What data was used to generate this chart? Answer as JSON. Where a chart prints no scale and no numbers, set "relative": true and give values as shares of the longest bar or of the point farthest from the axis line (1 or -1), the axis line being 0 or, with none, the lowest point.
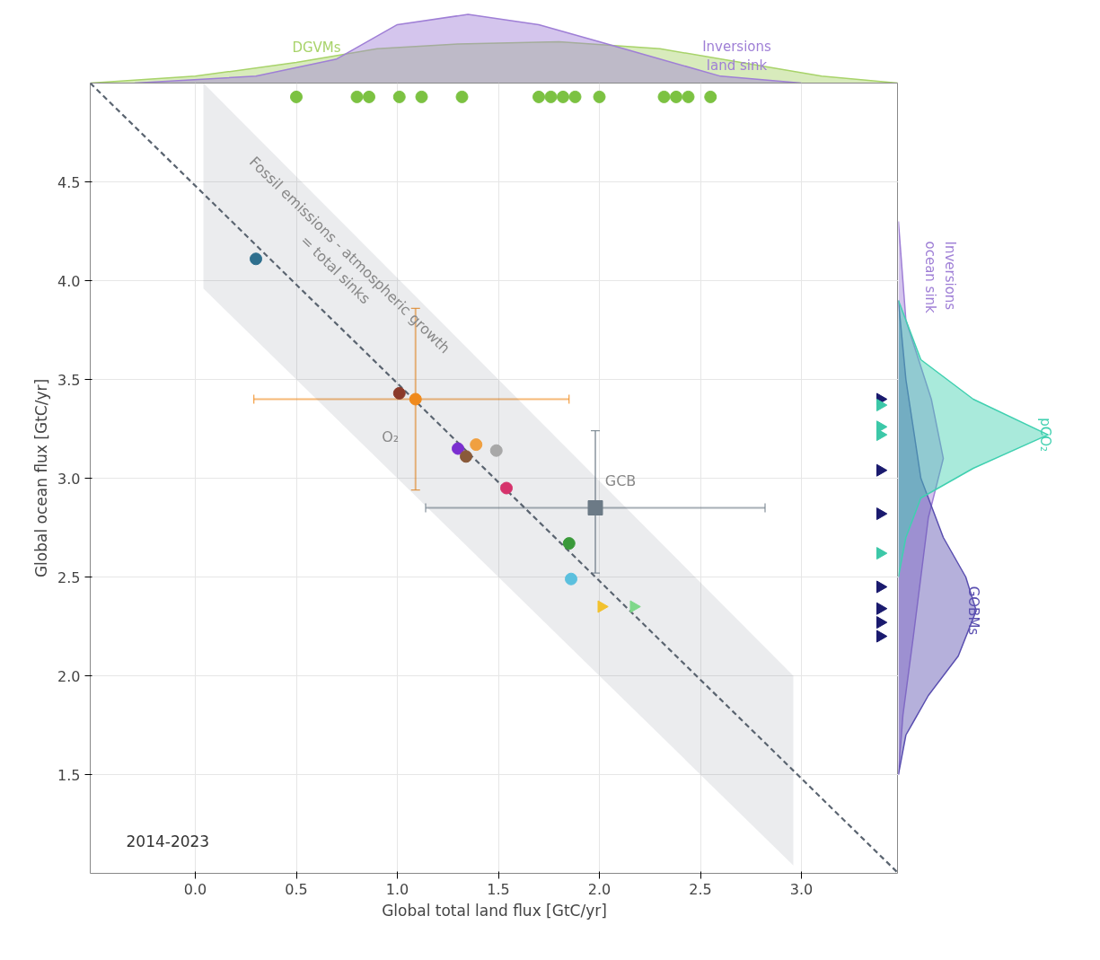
{
  "chart_data": [
    {
      "type": "area",
      "relative": true,
      "xlim": [
        -0.52,
        3.48
      ],
      "series": [
        {
          "name": "DGVMs",
          "color": "#a8d36a",
          "x": [
            -0.52,
            0.0,
            0.5,
            0.9,
            1.3,
            1.8,
            2.3,
            2.7,
            3.1,
            3.48
          ],
          "values": [
            0,
            0.1,
            0.3,
            0.5,
            0.57,
            0.6,
            0.5,
            0.3,
            0.1,
            0
          ]
        },
        {
          "name": "Inversions\nland sink",
          "color": "#9f7fd6",
          "x": [
            -0.3,
            0.3,
            0.7,
            1.0,
            1.35,
            1.7,
            2.0,
            2.3,
            2.6,
            3.0
          ],
          "values": [
            0,
            0.1,
            0.35,
            0.85,
            1.0,
            0.85,
            0.6,
            0.35,
            0.1,
            0
          ]
        }
      ],
      "tick_labels": false
    },
    {
      "type": "scatter",
      "xlim": [
        -0.52,
        3.48
      ],
      "ylim": [
        1.0,
        5.0
      ],
      "xticks": [
        {
          "value": 0,
          "label": "0.0"
        },
        0.5,
        {
          "value": 1,
          "label": "1.0"
        },
        1.5,
        {
          "value": 2,
          "label": "2.0"
        },
        2.5,
        {
          "value": 3,
          "label": "3.0"
        }
      ],
      "yticks": [
        1.5,
        {
          "value": 2,
          "label": "2.0"
        },
        2.5,
        {
          "value": 3,
          "label": "3.0"
        },
        3.5,
        {
          "value": 4,
          "label": "4.0"
        },
        4.5
      ],
      "xlabel": "Global total land flux [GtC/yr]",
      "ylabel": "Global ocean flux [GtC/yr]",
      "grid": true,
      "series": [
        {
          "type": "line",
          "line_style": "dashed",
          "color": "#5a6470",
          "x": [
            -0.52,
            0.04,
            2.96,
            3.48
          ],
          "values": [
            5.0,
            4.44,
            1.52,
            1.0
          ],
          "lower": [
            null,
            3.96,
            1.04,
            null
          ],
          "upper": [
            null,
            5.0,
            2.0,
            null
          ]
        },
        {
          "marker": "circle",
          "x": [
            0.3,
            1.01,
            1.3,
            1.34,
            1.39,
            1.49,
            1.54,
            1.85,
            1.86
          ],
          "values": [
            4.11,
            3.43,
            3.15,
            3.11,
            3.17,
            3.14,
            2.95,
            2.67,
            2.49
          ],
          "colors": [
            "#2e6f8e",
            "#8b3a2a",
            "#7b2fd0",
            "#8a5a3a",
            "#f0a040",
            "#a8a8a8",
            "#d6336c",
            "#3a9a3a",
            "#5bc0de"
          ]
        },
        {
          "marker": "triangle",
          "x": [
            2.01,
            2.17
          ],
          "values": [
            2.35,
            2.35
          ],
          "colors": [
            "#f2c12e",
            "#7fd88a"
          ]
        },
        {
          "marker": "circle",
          "color": "#f08a1c",
          "x": [
            1.09
          ],
          "values": [
            3.4
          ],
          "errors": [
            [
              2.94,
              3.86
            ]
          ],
          "xerrors": [
            [
              0.29,
              1.85
            ]
          ]
        },
        {
          "marker": "square",
          "color": "#6c7a86",
          "x": [
            1.98
          ],
          "values": [
            2.85
          ],
          "errors": [
            [
              2.52,
              3.24
            ]
          ],
          "xerrors": [
            [
              1.14,
              2.82
            ]
          ]
        },
        {
          "marker": "circle",
          "color": "#7cc242",
          "x": [
            0.5,
            0.8,
            0.86,
            1.01,
            1.12,
            1.32,
            1.7,
            1.76,
            1.82,
            1.88,
            2.0,
            2.32,
            2.38,
            2.44,
            2.55
          ],
          "values": [
            4.93,
            4.93,
            4.93,
            4.93,
            4.93,
            4.93,
            4.93,
            4.93,
            4.93,
            4.93,
            4.93,
            4.93,
            4.93,
            4.93,
            4.93
          ]
        },
        {
          "marker": "triangle",
          "x": [
            3.39,
            3.39,
            3.39,
            3.39,
            3.39,
            3.39,
            3.39,
            3.39,
            3.39,
            3.39,
            3.39
          ],
          "values": [
            3.4,
            3.37,
            3.26,
            3.22,
            3.04,
            2.82,
            2.62,
            2.45,
            2.34,
            2.27,
            2.2
          ],
          "colors": [
            "#1a1a6e",
            "#3cc8a8",
            "#3cc8a8",
            "#3cc8a8",
            "#1a1a6e",
            "#1a1a6e",
            "#3cc8a8",
            "#1a1a6e",
            "#1a1a6e",
            "#1a1a6e",
            "#1a1a6e"
          ]
        }
      ],
      "annotations": [
        "Fossil emissions - atmospheric growth\n= total sinks",
        {
          "text": "O₂",
          "x": 1.09,
          "y": 3.4
        },
        {
          "text": "GCB",
          "x": 1.98,
          "y": 2.85
        },
        "2014-2023"
      ]
    },
    {
      "type": "area",
      "orientation": "horizontal",
      "relative": true,
      "ylim": [
        1.0,
        5.0
      ],
      "series": [
        {
          "name": "Inversions\nocean sink",
          "color": "#9f7fd6",
          "x": [
            4.3,
            3.8,
            3.4,
            3.1,
            2.8,
            2.5,
            2.2,
            1.8,
            1.5
          ],
          "values": [
            0,
            0.05,
            0.22,
            0.3,
            0.2,
            0.15,
            0.1,
            0.03,
            0
          ]
        },
        {
          "name": "GOBMs",
          "color": "#5a4fb0",
          "x": [
            3.9,
            3.5,
            3.0,
            2.7,
            2.5,
            2.33,
            2.1,
            1.9,
            1.7,
            1.5
          ],
          "values": [
            0,
            0.05,
            0.15,
            0.3,
            0.45,
            0.52,
            0.4,
            0.2,
            0.05,
            0
          ]
        },
        {
          "name": "pCO₂",
          "color": "#40d0b0",
          "x": [
            3.9,
            3.6,
            3.4,
            3.22,
            3.05,
            2.9,
            2.7,
            2.5
          ],
          "values": [
            0,
            0.15,
            0.5,
            1.0,
            0.5,
            0.15,
            0.05,
            0
          ]
        }
      ],
      "tick_labels": false
    }
  ]
}
